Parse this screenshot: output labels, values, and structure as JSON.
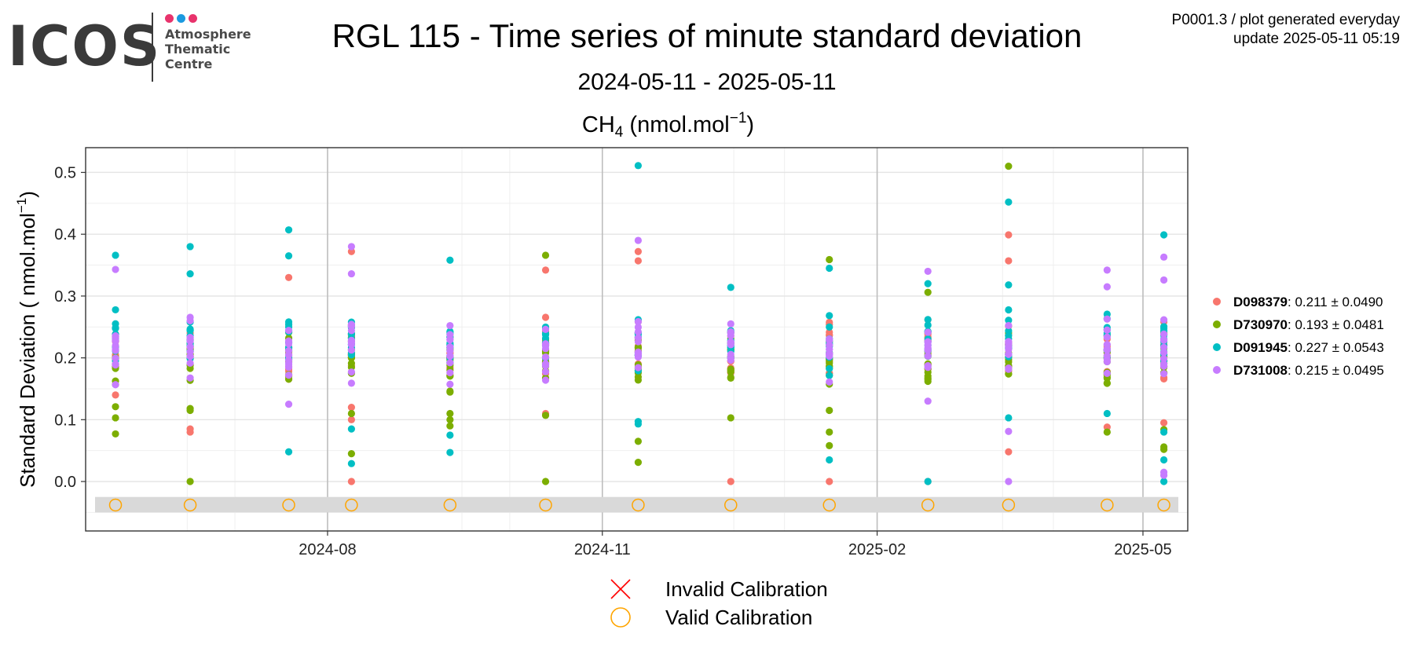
{
  "header": {
    "logo_word": "ICOS",
    "logo_lines": [
      "Atmosphere",
      "Thematic",
      "Centre"
    ],
    "logo_dot_colors": [
      "#e8336c",
      "#1b9ae0",
      "#e8336c"
    ],
    "title": "RGL 115 - Time series of minute standard deviation",
    "subtitle": "2024-05-11 - 2025-05-11",
    "meta_line1": "P0001.3 / plot generated everyday",
    "meta_line2": "update  2025-05-11 05:19"
  },
  "chart_data": {
    "type": "scatter",
    "panel_title": {
      "main": "CH",
      "sub": "4",
      "unit": " (nmol.mol",
      "sup": "−1",
      "close": ")"
    },
    "ylabel": {
      "main": "Standard Deviation ( nmol.mol",
      "sup": "−1",
      "close": ")"
    },
    "ylim": [
      -0.08,
      0.54
    ],
    "xlim": [
      "2024-05-12",
      "2025-05-16"
    ],
    "yticks": [
      "0.0",
      "0.1",
      "0.2",
      "0.3",
      "0.4",
      "0.5"
    ],
    "xticks": [
      "2024-08",
      "2024-11",
      "2025-02",
      "2025-05"
    ],
    "grid": true,
    "legend_position": "right",
    "series": [
      {
        "id": "D098379",
        "color": "#f8766d",
        "stats": ": 0.211 ± 0.0490"
      },
      {
        "id": "D730970",
        "color": "#7cae00",
        "stats": ": 0.193 ± 0.0481"
      },
      {
        "id": "D091945",
        "color": "#00bfc4",
        "stats": ": 0.227 ± 0.0543"
      },
      {
        "id": "D731008",
        "color": "#c77cff",
        "stats": ": 0.215 ± 0.0495"
      }
    ],
    "clusters": [
      {
        "date": "2024-05-22",
        "mean": [
          0.211,
          0.193,
          0.227,
          0.215
        ],
        "sd": 0.045,
        "lo": 0.13,
        "hi": 0.35,
        "extra": [
          [
            2,
            0.366
          ],
          [
            1,
            0.121
          ],
          [
            1,
            0.103
          ],
          [
            1,
            0.077
          ],
          [
            3,
            0.343
          ],
          [
            0,
            0.14
          ]
        ]
      },
      {
        "date": "2024-06-16",
        "mean": [
          0.211,
          0.193,
          0.227,
          0.215
        ],
        "sd": 0.045,
        "lo": 0.14,
        "hi": 0.33,
        "extra": [
          [
            2,
            0.38
          ],
          [
            2,
            0.336
          ],
          [
            0,
            0.085
          ],
          [
            0,
            0.08
          ],
          [
            1,
            0.118
          ],
          [
            1,
            0.115
          ],
          [
            1,
            0.0
          ]
        ]
      },
      {
        "date": "2024-07-19",
        "mean": [
          0.211,
          0.193,
          0.227,
          0.215
        ],
        "sd": 0.045,
        "lo": 0.13,
        "hi": 0.35,
        "extra": [
          [
            2,
            0.407
          ],
          [
            2,
            0.365
          ],
          [
            2,
            0.048
          ],
          [
            3,
            0.125
          ],
          [
            0,
            0.33
          ]
        ]
      },
      {
        "date": "2024-08-09",
        "mean": [
          0.211,
          0.193,
          0.227,
          0.215
        ],
        "sd": 0.045,
        "lo": 0.13,
        "hi": 0.32,
        "extra": [
          [
            3,
            0.38
          ],
          [
            0,
            0.372
          ],
          [
            3,
            0.336
          ],
          [
            2,
            0.085
          ],
          [
            1,
            0.045
          ],
          [
            2,
            0.029
          ],
          [
            0,
            0.0
          ],
          [
            0,
            0.1
          ],
          [
            1,
            0.11
          ],
          [
            0,
            0.12
          ]
        ]
      },
      {
        "date": "2024-09-11",
        "mean": [
          0.211,
          0.193,
          0.227,
          0.215
        ],
        "sd": 0.045,
        "lo": 0.11,
        "hi": 0.34,
        "extra": [
          [
            2,
            0.358
          ],
          [
            2,
            0.075
          ],
          [
            2,
            0.047
          ],
          [
            1,
            0.09
          ],
          [
            1,
            0.1
          ],
          [
            1,
            0.11
          ]
        ]
      },
      {
        "date": "2024-10-13",
        "mean": [
          0.211,
          0.193,
          0.227,
          0.215
        ],
        "sd": 0.045,
        "lo": 0.12,
        "hi": 0.3,
        "extra": [
          [
            1,
            0.366
          ],
          [
            0,
            0.342
          ],
          [
            1,
            0.0
          ],
          [
            1,
            0.107
          ],
          [
            0,
            0.11
          ]
        ]
      },
      {
        "date": "2024-11-13",
        "mean": [
          0.211,
          0.193,
          0.227,
          0.215
        ],
        "sd": 0.045,
        "lo": 0.12,
        "hi": 0.36,
        "extra": [
          [
            2,
            0.511
          ],
          [
            3,
            0.39
          ],
          [
            0,
            0.372
          ],
          [
            1,
            0.065
          ],
          [
            1,
            0.031
          ],
          [
            2,
            0.097
          ],
          [
            2,
            0.093
          ],
          [
            0,
            0.357
          ]
        ]
      },
      {
        "date": "2024-12-14",
        "mean": [
          0.211,
          0.193,
          0.227,
          0.215
        ],
        "sd": 0.04,
        "lo": 0.12,
        "hi": 0.31,
        "extra": [
          [
            0,
            0.0
          ],
          [
            1,
            0.103
          ],
          [
            2,
            0.314
          ]
        ]
      },
      {
        "date": "2025-01-16",
        "mean": [
          0.211,
          0.193,
          0.227,
          0.215
        ],
        "sd": 0.045,
        "lo": 0.12,
        "hi": 0.34,
        "extra": [
          [
            1,
            0.359
          ],
          [
            2,
            0.345
          ],
          [
            1,
            0.08
          ],
          [
            1,
            0.058
          ],
          [
            2,
            0.035
          ],
          [
            0,
            0.0
          ],
          [
            1,
            0.115
          ]
        ]
      },
      {
        "date": "2025-02-18",
        "mean": [
          0.211,
          0.193,
          0.227,
          0.215
        ],
        "sd": 0.04,
        "lo": 0.14,
        "hi": 0.3,
        "extra": [
          [
            3,
            0.34
          ],
          [
            2,
            0.32
          ],
          [
            1,
            0.306
          ],
          [
            2,
            0.0
          ],
          [
            0,
            0.0
          ],
          [
            3,
            0.13
          ]
        ]
      },
      {
        "date": "2025-03-17",
        "mean": [
          0.211,
          0.193,
          0.227,
          0.215
        ],
        "sd": 0.045,
        "lo": 0.12,
        "hi": 0.3,
        "extra": [
          [
            1,
            0.51
          ],
          [
            2,
            0.452
          ],
          [
            0,
            0.399
          ],
          [
            0,
            0.357
          ],
          [
            2,
            0.318
          ],
          [
            2,
            0.103
          ],
          [
            3,
            0.081
          ],
          [
            0,
            0.048
          ],
          [
            3,
            0.0
          ]
        ]
      },
      {
        "date": "2025-04-19",
        "mean": [
          0.211,
          0.193,
          0.227,
          0.215
        ],
        "sd": 0.045,
        "lo": 0.11,
        "hi": 0.3,
        "extra": [
          [
            3,
            0.342
          ],
          [
            3,
            0.315
          ],
          [
            0,
            0.088
          ],
          [
            1,
            0.08
          ],
          [
            2,
            0.11
          ]
        ]
      },
      {
        "date": "2025-05-08",
        "mean": [
          0.211,
          0.193,
          0.227,
          0.215
        ],
        "sd": 0.045,
        "lo": 0.12,
        "hi": 0.3,
        "extra": [
          [
            2,
            0.399
          ],
          [
            3,
            0.363
          ],
          [
            3,
            0.326
          ],
          [
            0,
            0.095
          ],
          [
            1,
            0.056
          ],
          [
            1,
            0.052
          ],
          [
            2,
            0.035
          ],
          [
            3,
            0.015
          ],
          [
            3,
            0.01
          ],
          [
            2,
            0.0
          ],
          [
            1,
            0.084
          ],
          [
            2,
            0.08
          ]
        ]
      }
    ],
    "calibration": {
      "y": -0.038,
      "band": [
        -0.05,
        -0.025
      ],
      "band_color": "#d9d9d9",
      "valid_color": "#ffa500",
      "invalid_color": "#ff0000",
      "valid_dates": [
        "2024-05-22",
        "2024-06-16",
        "2024-07-19",
        "2024-08-09",
        "2024-09-11",
        "2024-10-13",
        "2024-11-13",
        "2024-12-14",
        "2025-01-16",
        "2025-02-18",
        "2025-03-17",
        "2025-04-19",
        "2025-05-08"
      ]
    },
    "calibration_legend": {
      "invalid": "Invalid Calibration",
      "valid": "Valid Calibration"
    }
  }
}
